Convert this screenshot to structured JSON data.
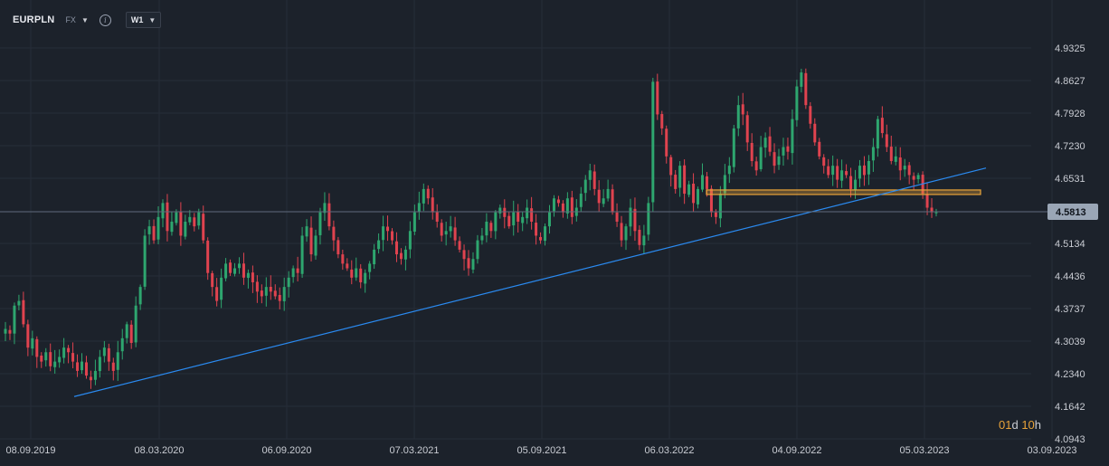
{
  "header": {
    "symbol": "EURPLN",
    "market": "FX",
    "timeframe": "W1",
    "info_icon": "info-circle-icon",
    "dropdown_icon": "caret-down-icon"
  },
  "countdown": {
    "days": "01",
    "days_unit": "d",
    "hours": "10",
    "hours_unit": "h"
  },
  "colors": {
    "background": "#1c222b",
    "grid": "#262d38",
    "up": "#2ea66f",
    "down": "#e0434f",
    "trendline": "#2a8af0",
    "zone_fill": "#e8a33a",
    "price_line": "#5f6b7c",
    "last_price_bg": "#9aa6b6"
  },
  "chart_data": {
    "type": "candlestick",
    "title": "EURPLN",
    "interval": "W1",
    "y_axis": {
      "side": "right",
      "ticks": [
        "4.9325",
        "4.8627",
        "4.7928",
        "4.7230",
        "4.6531",
        "4.5134",
        "4.4436",
        "4.3737",
        "4.3039",
        "4.2340",
        "4.1642",
        "4.0943"
      ],
      "range": [
        4.0943,
        4.9325
      ]
    },
    "x_axis": {
      "ticks": [
        "08.09.2019",
        "08.03.2020",
        "06.09.2020",
        "07.03.2021",
        "05.09.2021",
        "06.03.2022",
        "04.09.2022",
        "05.03.2023",
        "03.09.2023"
      ]
    },
    "last_price": "4.5813",
    "grid": true,
    "trendline": {
      "start": [
        "2019-12",
        4.185
      ],
      "end": [
        "2023-06",
        4.675
      ]
    },
    "horizontal_zone": {
      "from": "2022-05",
      "to": "2023-06",
      "low": 4.62,
      "high": 4.628
    },
    "series": [
      {
        "close": [
          4.33,
          4.32,
          4.38,
          4.39,
          4.34,
          4.29,
          4.31,
          4.27,
          4.26,
          4.28,
          4.25,
          4.26,
          4.27,
          4.29,
          4.28,
          4.26,
          4.24,
          4.26,
          4.23,
          4.22,
          4.24,
          4.27,
          4.29,
          4.26,
          4.24,
          4.28,
          4.31,
          4.34,
          4.3,
          4.38,
          4.42,
          4.53,
          4.55,
          4.52,
          4.57,
          4.6,
          4.54,
          4.56,
          4.58,
          4.53,
          4.56,
          4.57,
          4.55,
          4.58,
          4.52,
          4.45,
          4.42,
          4.39,
          4.44,
          4.47,
          4.45,
          4.46,
          4.47,
          4.44,
          4.45,
          4.43,
          4.41,
          4.4,
          4.42,
          4.41,
          4.4,
          4.39,
          4.42,
          4.44,
          4.46,
          4.45,
          4.53,
          4.55,
          4.49,
          4.53,
          4.58,
          4.6,
          4.55,
          4.52,
          4.49,
          4.47,
          4.46,
          4.44,
          4.46,
          4.43,
          4.45,
          4.47,
          4.5,
          4.52,
          4.55,
          4.54,
          4.52,
          4.49,
          4.48,
          4.5,
          4.54,
          4.58,
          4.6,
          4.63,
          4.61,
          4.58,
          4.56,
          4.53,
          4.54,
          4.55,
          4.52,
          4.5,
          4.48,
          4.46,
          4.48,
          4.52,
          4.53,
          4.56,
          4.54,
          4.58,
          4.59,
          4.57,
          4.55,
          4.58,
          4.56,
          4.57,
          4.59,
          4.56,
          4.53,
          4.52,
          4.55,
          4.58,
          4.61,
          4.6,
          4.58,
          4.61,
          4.57,
          4.59,
          4.62,
          4.65,
          4.67,
          4.63,
          4.6,
          4.61,
          4.63,
          4.58,
          4.56,
          4.52,
          4.55,
          4.59,
          4.54,
          4.51,
          4.53,
          4.6,
          4.86,
          4.79,
          4.76,
          4.7,
          4.66,
          4.63,
          4.68,
          4.62,
          4.64,
          4.6,
          4.63,
          4.66,
          4.63,
          4.58,
          4.57,
          4.62,
          4.66,
          4.68,
          4.76,
          4.81,
          4.79,
          4.73,
          4.69,
          4.67,
          4.72,
          4.74,
          4.71,
          4.68,
          4.7,
          4.72,
          4.71,
          4.78,
          4.85,
          4.88,
          4.81,
          4.77,
          4.73,
          4.7,
          4.68,
          4.66,
          4.68,
          4.65,
          4.67,
          4.66,
          4.63,
          4.65,
          4.68,
          4.66,
          4.69,
          4.72,
          4.78,
          4.75,
          4.72,
          4.69,
          4.7,
          4.67,
          4.68,
          4.66,
          4.65,
          4.66,
          4.62,
          4.59,
          4.58,
          4.58
        ]
      }
    ]
  }
}
